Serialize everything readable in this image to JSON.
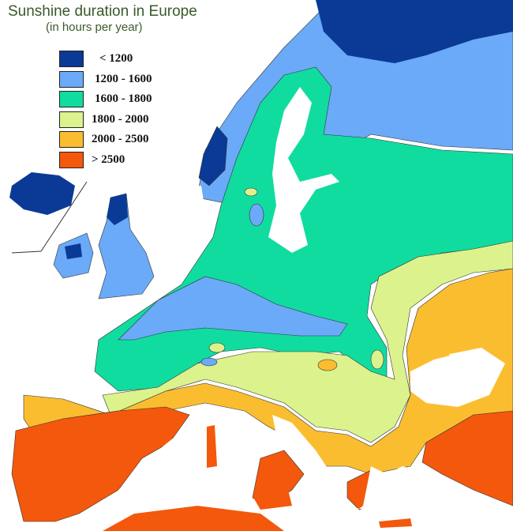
{
  "title": "Sunshine duration in Europe",
  "subtitle": "(in hours per year)",
  "legend": [
    {
      "label": "< 1200",
      "color": "#0a3a96"
    },
    {
      "label": "1200 - 1600",
      "color": "#6aaaf8"
    },
    {
      "label": "1600 - 1800",
      "color": "#10dca0"
    },
    {
      "label": "1800 - 2000",
      "color": "#dcf28c"
    },
    {
      "label": "2000 - 2500",
      "color": "#fbbd30"
    },
    {
      "label": "> 2500",
      "color": "#f4580c"
    }
  ]
}
